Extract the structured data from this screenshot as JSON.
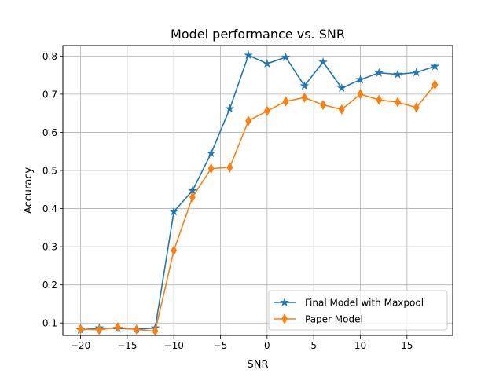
{
  "chart_data": {
    "type": "line",
    "title": "Model performance vs. SNR",
    "xlabel": "SNR",
    "ylabel": "Accuracy",
    "xlim": [
      -21.9,
      19.9
    ],
    "ylim": [
      0.0675,
      0.8275
    ],
    "xticks": [
      -20,
      -15,
      -10,
      -5,
      0,
      5,
      10,
      15
    ],
    "xtick_labels": [
      "−20",
      "−15",
      "−10",
      "−5",
      "0",
      "5",
      "10",
      "15"
    ],
    "yticks": [
      0.1,
      0.2,
      0.3,
      0.4,
      0.5,
      0.6,
      0.7,
      0.8
    ],
    "ytick_labels": [
      "0.1",
      "0.2",
      "0.3",
      "0.4",
      "0.5",
      "0.6",
      "0.7",
      "0.8"
    ],
    "grid": true,
    "legend_position": "bottom-right",
    "x": [
      -20,
      -18,
      -16,
      -14,
      -12,
      -10,
      -8,
      -6,
      -4,
      -2,
      0,
      2,
      4,
      6,
      8,
      10,
      12,
      14,
      16,
      18
    ],
    "series": [
      {
        "name": "Final Model with Maxpool",
        "color": "#1f77b4",
        "marker": "star",
        "values": [
          0.082,
          0.087,
          0.086,
          0.084,
          0.087,
          0.392,
          0.447,
          0.545,
          0.662,
          0.802,
          0.78,
          0.797,
          0.722,
          0.784,
          0.716,
          0.738,
          0.756,
          0.752,
          0.757,
          0.773
        ]
      },
      {
        "name": "Paper Model",
        "color": "#ff7f0e",
        "marker": "thin_diamond",
        "values": [
          0.084,
          0.082,
          0.089,
          0.083,
          0.079,
          0.29,
          0.43,
          0.505,
          0.508,
          0.63,
          0.656,
          0.681,
          0.691,
          0.672,
          0.66,
          0.7,
          0.685,
          0.679,
          0.665,
          0.725
        ]
      }
    ]
  }
}
